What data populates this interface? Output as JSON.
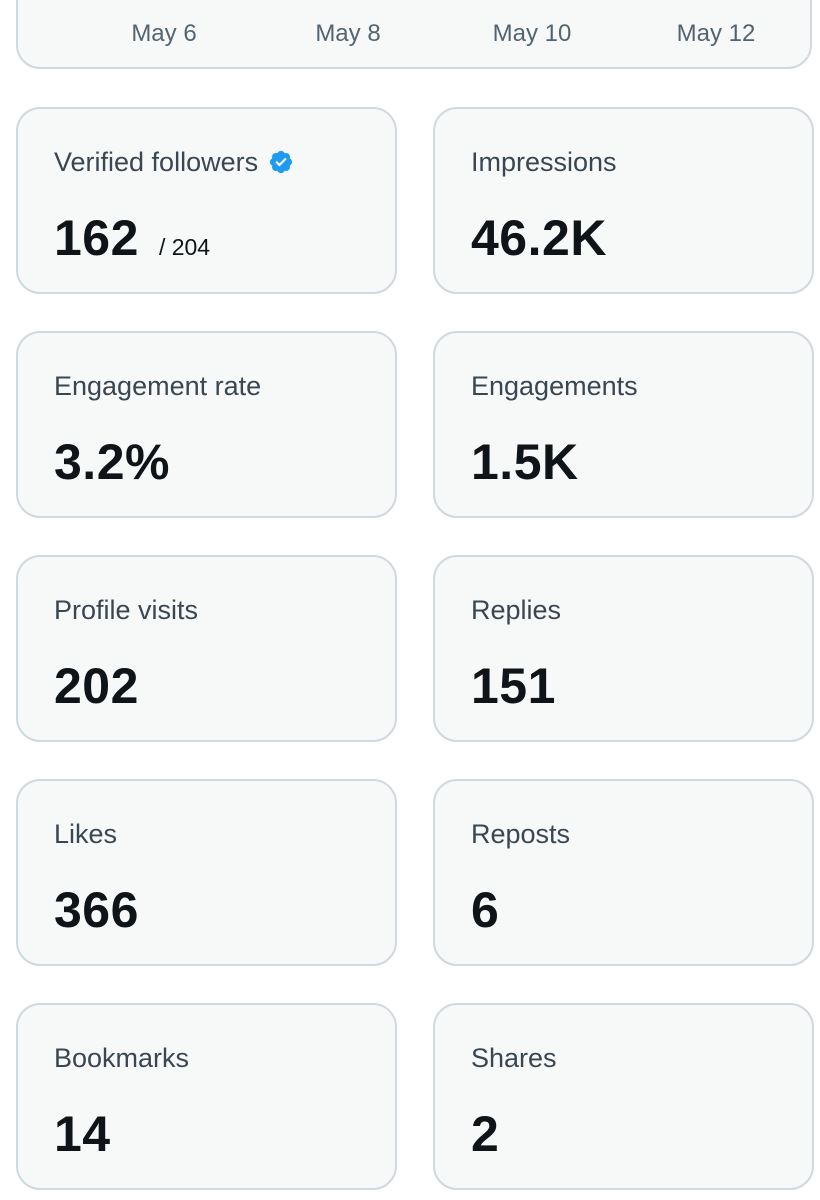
{
  "colors": {
    "card_bg": "#f7f9f9",
    "card_border": "#cfd9de",
    "label": "#3a4651",
    "value": "#0f1419",
    "axis_text": "#536471",
    "verified_blue": "#1d9bf0"
  },
  "chart_axis": {
    "ticks": [
      "May 6",
      "May 8",
      "May 10",
      "May 12"
    ]
  },
  "metrics": [
    {
      "label": "Verified followers",
      "value": "162",
      "sub": "/ 204",
      "icon": "verified-badge-icon"
    },
    {
      "label": "Impressions",
      "value": "46.2K"
    },
    {
      "label": "Engagement rate",
      "value": "3.2%"
    },
    {
      "label": "Engagements",
      "value": "1.5K"
    },
    {
      "label": "Profile visits",
      "value": "202"
    },
    {
      "label": "Replies",
      "value": "151"
    },
    {
      "label": "Likes",
      "value": "366"
    },
    {
      "label": "Reposts",
      "value": "6"
    },
    {
      "label": "Bookmarks",
      "value": "14"
    },
    {
      "label": "Shares",
      "value": "2"
    }
  ]
}
